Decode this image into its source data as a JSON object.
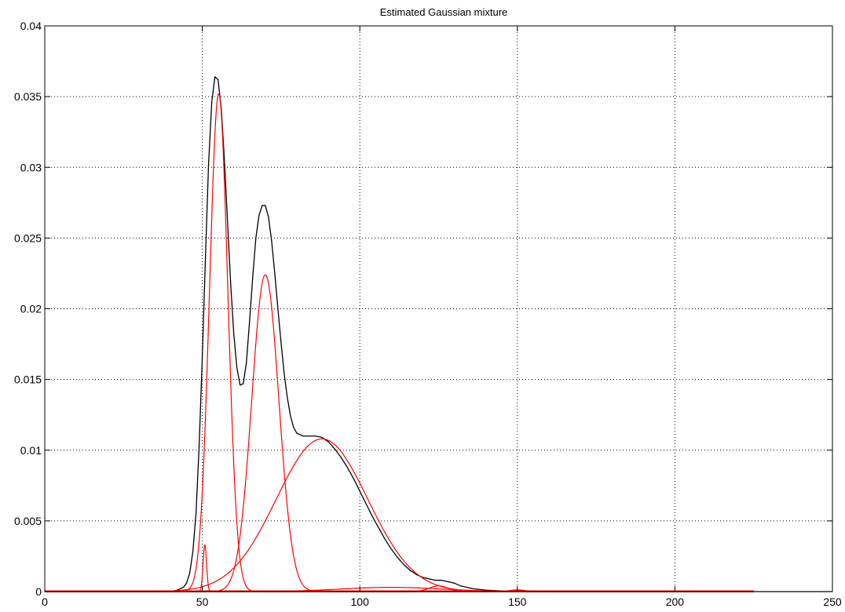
{
  "chart_data": {
    "type": "line",
    "title": "Estimated Gaussian mixture",
    "xlabel": "",
    "ylabel": "",
    "xlim": [
      0,
      250
    ],
    "ylim": [
      0,
      0.04
    ],
    "x_ticks": [
      "0",
      "50",
      "100",
      "150",
      "200",
      "250"
    ],
    "y_ticks": [
      "0",
      "0.005",
      "0.01",
      "0.015",
      "0.02",
      "0.025",
      "0.03",
      "0.035",
      "0.04"
    ],
    "grid": true,
    "colors": {
      "mixture": "#000000",
      "components": "#ff0000",
      "grid": "#000000"
    },
    "mixture": {
      "x": [
        40,
        42,
        44,
        45,
        46,
        47,
        48,
        49,
        50,
        51,
        52,
        53,
        54,
        55,
        56,
        57,
        58,
        59,
        60,
        61,
        62,
        63,
        64,
        65,
        66,
        67,
        68,
        69,
        70,
        71,
        72,
        73,
        74,
        75,
        76,
        77,
        78,
        79,
        80,
        82,
        84,
        86,
        88,
        90,
        92,
        94,
        96,
        98,
        100,
        102,
        104,
        106,
        108,
        110,
        112,
        114,
        116,
        118,
        120,
        122,
        124,
        126,
        128,
        130,
        132,
        134,
        136,
        140,
        145,
        150,
        155,
        160,
        170,
        180,
        200,
        225,
        250
      ],
      "y": [
        0,
        0.0001,
        0.0003,
        0.0006,
        0.0013,
        0.0028,
        0.0055,
        0.0103,
        0.0166,
        0.0236,
        0.0303,
        0.0346,
        0.0364,
        0.0362,
        0.0342,
        0.0306,
        0.0262,
        0.0218,
        0.0182,
        0.0158,
        0.0146,
        0.0147,
        0.0162,
        0.0191,
        0.0222,
        0.025,
        0.0266,
        0.0273,
        0.0273,
        0.0265,
        0.0248,
        0.0225,
        0.02,
        0.0176,
        0.0154,
        0.0137,
        0.0124,
        0.0116,
        0.0112,
        0.011,
        0.011,
        0.011,
        0.0109,
        0.0106,
        0.0101,
        0.0095,
        0.0088,
        0.008,
        0.0071,
        0.0062,
        0.0053,
        0.0045,
        0.0037,
        0.003,
        0.0024,
        0.0019,
        0.0015,
        0.0012,
        0.001,
        0.0009,
        0.0008,
        0.0008,
        0.0007,
        0.0006,
        0.0004,
        0.0003,
        0.0002,
        0.0001,
        5e-05,
        2e-05,
        0,
        0,
        0,
        0,
        0,
        0,
        0
      ]
    },
    "components": [
      {
        "mean": 50.8,
        "sd": 0.55,
        "peak": 0.0033
      },
      {
        "mean": 55.2,
        "sd": 2.9,
        "peak": 0.0352
      },
      {
        "mean": 70.0,
        "sd": 4.3,
        "peak": 0.0224
      },
      {
        "mean": 88.0,
        "sd": 14.5,
        "peak": 0.0108
      },
      {
        "mean": 110.0,
        "sd": 16.0,
        "peak": 0.0003
      },
      {
        "mean": 125.0,
        "sd": 3.0,
        "peak": 0.0004
      },
      {
        "mean": 150.0,
        "sd": 2.5,
        "peak": 0.00012
      },
      {
        "mean": 180.0,
        "sd": 25.0,
        "peak": 5e-05
      }
    ]
  }
}
